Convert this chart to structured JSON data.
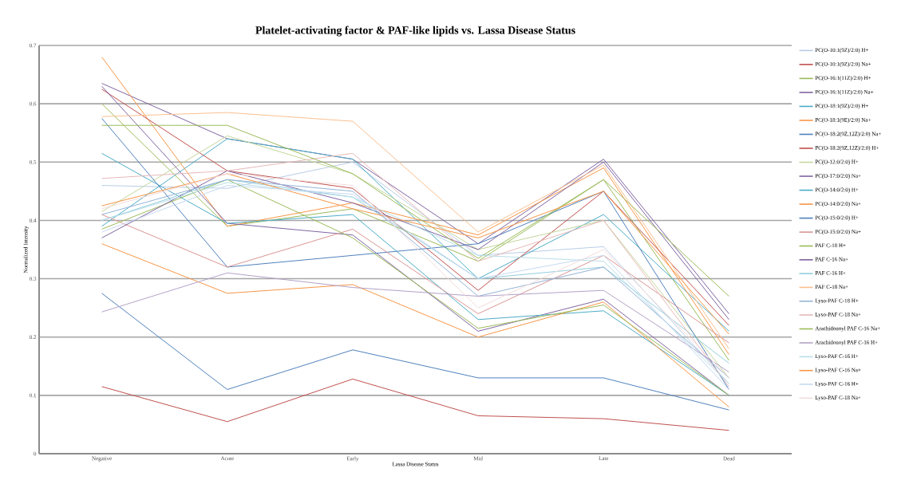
{
  "chart_data": {
    "type": "line",
    "title": "Platelet-activating factor & PAF-like lipids vs. Lassa Disease Status",
    "xlabel": "Lassa Disease Status",
    "ylabel": "Normalized Intensity",
    "categories": [
      "Negative",
      "Acute",
      "Early",
      "Mid",
      "Late",
      "Dead"
    ],
    "ylim": [
      0,
      0.7
    ],
    "yticks": [
      0,
      0.1,
      0.2,
      0.3,
      0.4,
      0.5,
      0.6,
      0.7
    ],
    "grid": "y",
    "legend": "right",
    "marker": "none",
    "line_style": "solid",
    "series": [
      {
        "name": "PC(O-10:1(9Z)/2:0) H+",
        "color": "#b9cde5",
        "values": [
          0.46,
          0.455,
          0.5,
          0.34,
          0.355,
          0.12
        ]
      },
      {
        "name": "PC(O-10:1(9Z)/2:0) Na+",
        "color": "#c0504d",
        "values": [
          0.115,
          0.055,
          0.128,
          0.065,
          0.06,
          0.04
        ]
      },
      {
        "name": "PC(O-16:1(11Z)/2:0) H+",
        "color": "#9bbb59",
        "values": [
          0.6,
          0.39,
          0.42,
          0.33,
          0.47,
          0.16
        ]
      },
      {
        "name": "PC(O-16:1(11Z)/2:0) Na+",
        "color": "#8064a2",
        "values": [
          0.635,
          0.54,
          0.505,
          0.36,
          0.505,
          0.24
        ]
      },
      {
        "name": "PC(O-18:1(9Z)/2:0) H+",
        "color": "#4bacc6",
        "values": [
          0.39,
          0.54,
          0.505,
          0.3,
          0.41,
          0.21
        ]
      },
      {
        "name": "PC(O-18:1(9E)/2:0) Na+",
        "color": "#f79646",
        "values": [
          0.68,
          0.39,
          0.43,
          0.375,
          0.49,
          0.17
        ]
      },
      {
        "name": "PC(O-18:2(9Z,12Z)/2:0) Na+",
        "color": "#4f81bd",
        "values": [
          0.275,
          0.11,
          0.178,
          0.13,
          0.13,
          0.075
        ]
      },
      {
        "name": "PC(O-18:2(9Z,12Z)/2:0) H+",
        "color": "#c0504d",
        "values": [
          0.625,
          0.485,
          0.455,
          0.28,
          0.45,
          0.22
        ]
      },
      {
        "name": "PC(O-12:0/2:0) H+",
        "color": "#c3d69b",
        "values": [
          0.415,
          0.545,
          0.48,
          0.35,
          0.4,
          0.13
        ]
      },
      {
        "name": "PC(O-17:0/2:0) Na+",
        "color": "#8064a2",
        "values": [
          0.63,
          0.395,
          0.375,
          0.21,
          0.265,
          0.1
        ]
      },
      {
        "name": "PC(O-14:0/2:0) H+",
        "color": "#4bacc6",
        "values": [
          0.515,
          0.395,
          0.41,
          0.23,
          0.245,
          0.1
        ]
      },
      {
        "name": "PC(O-14:0/2:0) Na+",
        "color": "#f79646",
        "values": [
          0.36,
          0.275,
          0.29,
          0.2,
          0.26,
          0.08
        ]
      },
      {
        "name": "PC(O-15:0/2:0) H+",
        "color": "#4f81bd",
        "values": [
          0.575,
          0.32,
          0.34,
          0.36,
          0.45,
          0.11
        ]
      },
      {
        "name": "PC(O-15:0/2:0) Na+",
        "color": "#d99694",
        "values": [
          0.41,
          0.32,
          0.385,
          0.24,
          0.34,
          0.19
        ]
      },
      {
        "name": "PAF C-18 H+",
        "color": "#9bbb59",
        "values": [
          0.385,
          0.47,
          0.37,
          0.215,
          0.255,
          0.1
        ]
      },
      {
        "name": "PAF C-16 Na+",
        "color": "#8064a2",
        "values": [
          0.37,
          0.485,
          0.43,
          0.35,
          0.5,
          0.23
        ]
      },
      {
        "name": "PAF C-16 H+",
        "color": "#93cddd",
        "values": [
          0.4,
          0.47,
          0.44,
          0.3,
          0.32,
          0.155
        ]
      },
      {
        "name": "PAF C-18 Na+",
        "color": "#fac090",
        "values": [
          0.578,
          0.585,
          0.57,
          0.38,
          0.495,
          0.18
        ]
      },
      {
        "name": "Lyso-PAF C-18 H+",
        "color": "#95b3d7",
        "values": [
          0.41,
          0.47,
          0.45,
          0.27,
          0.32,
          0.13
        ]
      },
      {
        "name": "Lyso-PAF C-18 Na+",
        "color": "#e6b9b8",
        "values": [
          0.472,
          0.485,
          0.515,
          0.33,
          0.4,
          0.115
        ]
      },
      {
        "name": "Arachidonoyl PAF C-16 Na+",
        "color": "#9bbb59",
        "values": [
          0.563,
          0.563,
          0.48,
          0.335,
          0.47,
          0.27
        ]
      },
      {
        "name": "Arachidonoyl PAF C-16 H+",
        "color": "#b3a2c7",
        "values": [
          0.243,
          0.31,
          0.285,
          0.27,
          0.28,
          0.14
        ]
      },
      {
        "name": "Lyso-PAF C-16 H+",
        "color": "#b7dee8",
        "values": [
          0.4,
          0.465,
          0.44,
          0.34,
          0.33,
          0.12
        ]
      },
      {
        "name": "Lyso-PAF C-16 Na+",
        "color": "#f79646",
        "values": [
          0.425,
          0.48,
          0.42,
          0.37,
          0.45,
          0.205
        ]
      },
      {
        "name": "Lyso-PAF C-16 H+",
        "color": "#c6d9f1",
        "values": [
          0.38,
          0.46,
          0.445,
          0.3,
          0.34,
          0.11
        ]
      },
      {
        "name": "Lyso-PAF C-18 Na+",
        "color": "#f2dcdb",
        "values": [
          0.42,
          0.48,
          0.46,
          0.25,
          0.35,
          0.13
        ]
      }
    ]
  }
}
